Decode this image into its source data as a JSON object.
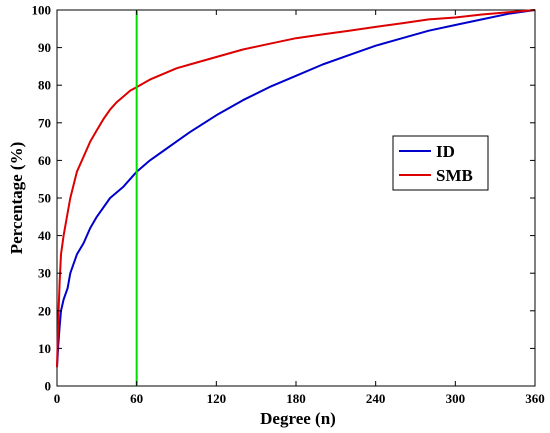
{
  "chart_data": {
    "type": "line",
    "title": "",
    "xlabel": "Degree (n)",
    "ylabel": "Percentage (%)",
    "xlim": [
      0,
      360
    ],
    "ylim": [
      0,
      100
    ],
    "xticks": [
      0,
      60,
      120,
      180,
      240,
      300,
      360
    ],
    "yticks": [
      0,
      10,
      20,
      30,
      40,
      50,
      60,
      70,
      80,
      90,
      100
    ],
    "grid": false,
    "legend_position": "right",
    "vertical_line": {
      "x": 60,
      "color": "#00dd00"
    },
    "series": [
      {
        "name": "ID",
        "color": "#0000cc",
        "x": [
          0,
          1,
          2,
          3,
          5,
          8,
          10,
          15,
          20,
          25,
          30,
          40,
          50,
          60,
          70,
          80,
          90,
          100,
          120,
          140,
          160,
          180,
          200,
          220,
          240,
          260,
          280,
          300,
          320,
          340,
          360
        ],
        "y": [
          5,
          11,
          16,
          20,
          23,
          26,
          30,
          35,
          38,
          42,
          45,
          50,
          53,
          57,
          60,
          62.5,
          65,
          67.5,
          72,
          76,
          79.5,
          82.5,
          85.5,
          88,
          90.5,
          92.5,
          94.5,
          96,
          97.5,
          99,
          100
        ]
      },
      {
        "name": "SMB",
        "color": "#dd0000",
        "x": [
          0,
          1,
          2,
          3,
          5,
          8,
          10,
          15,
          20,
          25,
          30,
          35,
          40,
          45,
          50,
          55,
          60,
          70,
          80,
          90,
          100,
          120,
          140,
          160,
          180,
          200,
          220,
          240,
          260,
          280,
          300,
          320,
          340,
          360
        ],
        "y": [
          5,
          18,
          28,
          35,
          40,
          46,
          50,
          57,
          61,
          65,
          68,
          71,
          73.5,
          75.5,
          77,
          78.5,
          79.5,
          81.5,
          83,
          84.5,
          85.5,
          87.5,
          89.5,
          91,
          92.5,
          93.5,
          94.5,
          95.5,
          96.5,
          97.5,
          98,
          98.8,
          99.4,
          100
        ]
      }
    ]
  }
}
